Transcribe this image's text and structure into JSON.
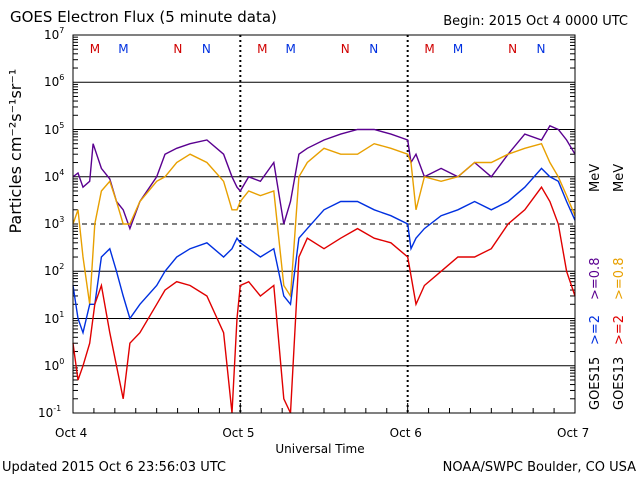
{
  "header": {
    "title": "GOES Electron Flux (5 minute data)",
    "begin": "Begin: 2015 Oct 4 0000 UTC"
  },
  "footer": {
    "updated": "Updated 2015 Oct  6 23:56:03 UTC",
    "credit": "NOAA/SWPC Boulder, CO USA"
  },
  "colors": {
    "goes15_08": "#5a0090",
    "goes13_08": "#e8a000",
    "goes15_2": "#0030e0",
    "goes13_2": "#e00000",
    "maneuver_M": "#d00000",
    "maneuver_N": "#0030e0"
  },
  "chart_data": {
    "type": "line",
    "title": "GOES Electron Flux (5 minute data)",
    "xlabel": "Universal Time",
    "ylabel": "Particles cm⁻²s⁻¹sr⁻¹",
    "yscale": "log",
    "ylim": [
      0.1,
      10000000
    ],
    "xlim": [
      0,
      3
    ],
    "x_ticks": [
      {
        "x": 0,
        "label": "Oct 4"
      },
      {
        "x": 1,
        "label": "Oct 5"
      },
      {
        "x": 2,
        "label": "Oct 6"
      },
      {
        "x": 3,
        "label": "Oct 7"
      }
    ],
    "y_ticks": [
      {
        "base": "10",
        "exp": "7",
        "value": 10000000
      },
      {
        "base": "10",
        "exp": "6",
        "value": 1000000
      },
      {
        "base": "10",
        "exp": "5",
        "value": 100000
      },
      {
        "base": "10",
        "exp": "4",
        "value": 10000
      },
      {
        "base": "10",
        "exp": "3",
        "value": 1000
      },
      {
        "base": "10",
        "exp": "2",
        "value": 100
      },
      {
        "base": "10",
        "exp": "1",
        "value": 10
      },
      {
        "base": "10",
        "exp": "0",
        "value": 1
      },
      {
        "base": "10",
        "exp": "-1",
        "value": 0.1
      }
    ],
    "grid": true,
    "dashed_lines": [
      1000
    ],
    "midnight_markers": [
      1,
      2
    ],
    "maneuver_markers": [
      {
        "label": "M",
        "x": 0.13
      },
      {
        "label": "M",
        "x": 0.3
      },
      {
        "label": "N",
        "x": 0.63
      },
      {
        "label": "N",
        "x": 0.8
      },
      {
        "label": "M",
        "x": 1.13
      },
      {
        "label": "M",
        "x": 1.3
      },
      {
        "label": "N",
        "x": 1.63
      },
      {
        "label": "N",
        "x": 1.8
      },
      {
        "label": "M",
        "x": 2.13
      },
      {
        "label": "M",
        "x": 2.3
      },
      {
        "label": "N",
        "x": 2.63
      },
      {
        "label": "N",
        "x": 2.8
      }
    ],
    "right_labels": {
      "goes15": "GOES15",
      "goes13": "GOES13",
      "ch2_15": ">=2",
      "ch2_13": ">=2",
      "ch08_15": ">=0.8",
      "ch08_13": ">=0.8",
      "unit": "MeV"
    },
    "series": [
      {
        "key": "goes15_08",
        "color": "#5a0090",
        "x": [
          0,
          0.03,
          0.06,
          0.1,
          0.12,
          0.17,
          0.22,
          0.26,
          0.3,
          0.34,
          0.4,
          0.5,
          0.55,
          0.62,
          0.7,
          0.8,
          0.9,
          0.95,
          0.98,
          1.0,
          1.05,
          1.12,
          1.2,
          1.26,
          1.3,
          1.35,
          1.4,
          1.5,
          1.6,
          1.7,
          1.8,
          1.9,
          2.0,
          2.02,
          2.05,
          2.1,
          2.2,
          2.3,
          2.4,
          2.5,
          2.6,
          2.7,
          2.8,
          2.85,
          2.9,
          2.95,
          3.0
        ],
        "y": [
          10000,
          12000,
          6000,
          8000,
          50000,
          15000,
          9000,
          3000,
          2000,
          800,
          3000,
          10000,
          30000,
          40000,
          50000,
          60000,
          30000,
          10000,
          6000,
          5000,
          10000,
          8000,
          20000,
          1000,
          3000,
          30000,
          40000,
          60000,
          80000,
          100000,
          100000,
          80000,
          60000,
          20000,
          30000,
          10000,
          15000,
          10000,
          20000,
          10000,
          30000,
          80000,
          60000,
          120000,
          100000,
          60000,
          30000
        ]
      },
      {
        "key": "goes13_08",
        "color": "#e8a000",
        "x": [
          0,
          0.03,
          0.06,
          0.1,
          0.13,
          0.17,
          0.22,
          0.26,
          0.3,
          0.34,
          0.4,
          0.5,
          0.55,
          0.62,
          0.7,
          0.8,
          0.9,
          0.95,
          0.98,
          1.0,
          1.05,
          1.12,
          1.2,
          1.26,
          1.3,
          1.35,
          1.4,
          1.5,
          1.6,
          1.7,
          1.8,
          1.9,
          2.0,
          2.02,
          2.05,
          2.1,
          2.2,
          2.3,
          2.4,
          2.5,
          2.6,
          2.7,
          2.8,
          2.85,
          2.9,
          2.95,
          3.0
        ],
        "y": [
          1000,
          2000,
          200,
          20,
          1000,
          5000,
          8000,
          3000,
          1000,
          1000,
          3000,
          8000,
          10000,
          20000,
          30000,
          20000,
          8000,
          2000,
          2000,
          3000,
          5000,
          4000,
          5000,
          50,
          30,
          10000,
          20000,
          40000,
          30000,
          30000,
          50000,
          40000,
          30000,
          20000,
          2000,
          10000,
          8000,
          10000,
          20000,
          20000,
          30000,
          40000,
          50000,
          20000,
          10000,
          4000,
          1500
        ]
      },
      {
        "key": "goes15_2",
        "color": "#0030e0",
        "x": [
          0,
          0.03,
          0.06,
          0.1,
          0.13,
          0.17,
          0.22,
          0.26,
          0.3,
          0.34,
          0.4,
          0.5,
          0.55,
          0.62,
          0.7,
          0.8,
          0.9,
          0.95,
          0.98,
          1.0,
          1.05,
          1.12,
          1.2,
          1.26,
          1.3,
          1.35,
          1.4,
          1.5,
          1.6,
          1.7,
          1.8,
          1.9,
          2.0,
          2.02,
          2.05,
          2.1,
          2.2,
          2.3,
          2.4,
          2.5,
          2.6,
          2.7,
          2.8,
          2.85,
          2.9,
          2.95,
          3.0
        ],
        "y": [
          50,
          10,
          5,
          20,
          20,
          200,
          300,
          100,
          30,
          10,
          20,
          50,
          100,
          200,
          300,
          400,
          200,
          300,
          500,
          400,
          300,
          200,
          300,
          30,
          20,
          500,
          800,
          2000,
          3000,
          3000,
          2000,
          1500,
          1000,
          300,
          500,
          800,
          1500,
          2000,
          3000,
          2000,
          3000,
          6000,
          15000,
          10000,
          8000,
          3000,
          1200
        ]
      },
      {
        "key": "goes13_2",
        "color": "#e00000",
        "x": [
          0,
          0.03,
          0.06,
          0.1,
          0.13,
          0.17,
          0.22,
          0.26,
          0.3,
          0.34,
          0.4,
          0.5,
          0.55,
          0.62,
          0.7,
          0.8,
          0.9,
          0.95,
          0.98,
          1.0,
          1.05,
          1.12,
          1.2,
          1.26,
          1.3,
          1.35,
          1.4,
          1.5,
          1.6,
          1.7,
          1.8,
          1.9,
          2.0,
          2.02,
          2.05,
          2.1,
          2.2,
          2.3,
          2.4,
          2.5,
          2.6,
          2.7,
          2.8,
          2.85,
          2.9,
          2.95,
          3.0
        ],
        "y": [
          3,
          0.5,
          1,
          3,
          20,
          50,
          5,
          1,
          0.2,
          3,
          5,
          20,
          40,
          60,
          50,
          30,
          5,
          0.1,
          10,
          50,
          60,
          30,
          50,
          0.2,
          0.1,
          200,
          500,
          300,
          500,
          800,
          500,
          400,
          200,
          80,
          20,
          50,
          100,
          200,
          200,
          300,
          1000,
          2000,
          6000,
          3000,
          1000,
          100,
          30
        ]
      }
    ]
  }
}
